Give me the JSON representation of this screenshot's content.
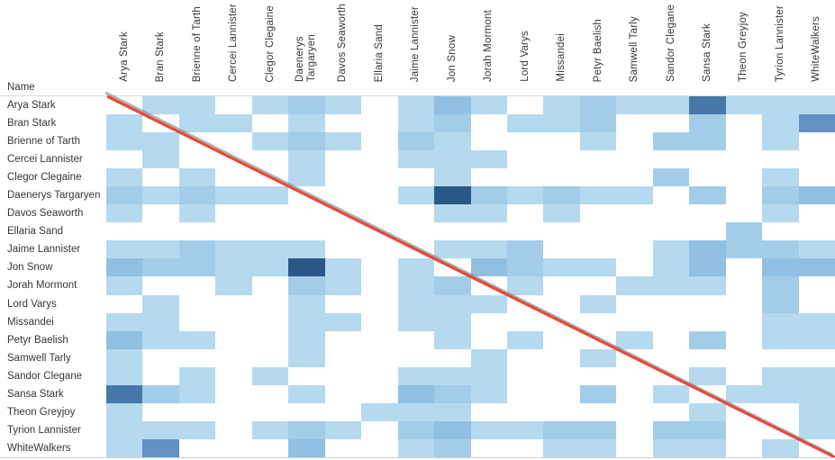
{
  "axis": {
    "name_label": "Name"
  },
  "chart_data": {
    "type": "heatmap",
    "title": "",
    "x_categories": [
      "Arya Stark",
      "Bran Stark",
      "Brienne of Tarth",
      "Cercei Lannister",
      "Clegor Clegaine",
      "Daenerys\nTargaryen",
      "Davos Seaworth",
      "Ellaria Sand",
      "Jaime Lannister",
      "Jon Snow",
      "Jorah Mormont",
      "Lord Varys",
      "Missandei",
      "Petyr Baelish",
      "Samwell Tarly",
      "Sandor Clegane",
      "Sansa Stark",
      "Theon Greyjoy",
      "Tyrion Lannister",
      "WhiteWalkers"
    ],
    "y_categories": [
      "Arya Stark",
      "Bran Stark",
      "Brienne of Tarth",
      "Cercei Lannister",
      "Clegor Clegaine",
      "Daenerys Targaryen",
      "Davos Seaworth",
      "Ellaria Sand",
      "Jaime Lannister",
      "Jon Snow",
      "Jorah Mormont",
      "Lord Varys",
      "Missandei",
      "Petyr Baelish",
      "Samwell Tarly",
      "Sandor Clegane",
      "Sansa Stark",
      "Theon Greyjoy",
      "Tyrion Lannister",
      "WhiteWalkers"
    ],
    "y_axis_title": "Name",
    "legend_position": "none",
    "grid": false,
    "intensity_scale_note": "0=no interaction(white), 6=strongest(darkest blue)",
    "palette": [
      "transparent",
      "#b5d9ef",
      "#a3cce8",
      "#90c0e2",
      "#6191c3",
      "#4678a8",
      "#2a5783"
    ],
    "matrix": [
      [
        0,
        1,
        1,
        0,
        1,
        2,
        1,
        0,
        1,
        3,
        1,
        0,
        1,
        2,
        1,
        1,
        5,
        1,
        1,
        1
      ],
      [
        1,
        0,
        1,
        1,
        0,
        1,
        0,
        0,
        1,
        2,
        0,
        1,
        1,
        2,
        0,
        0,
        2,
        0,
        1,
        4
      ],
      [
        1,
        1,
        0,
        0,
        1,
        2,
        1,
        0,
        2,
        1,
        0,
        0,
        0,
        1,
        0,
        2,
        2,
        0,
        1,
        0
      ],
      [
        0,
        1,
        0,
        0,
        0,
        1,
        0,
        0,
        1,
        1,
        1,
        0,
        0,
        0,
        0,
        0,
        0,
        0,
        0,
        0
      ],
      [
        1,
        0,
        1,
        0,
        0,
        1,
        0,
        0,
        0,
        1,
        0,
        0,
        0,
        0,
        0,
        2,
        0,
        0,
        1,
        0
      ],
      [
        2,
        1,
        2,
        1,
        1,
        0,
        0,
        0,
        1,
        6,
        2,
        1,
        2,
        1,
        1,
        0,
        2,
        0,
        2,
        3
      ],
      [
        1,
        0,
        1,
        0,
        0,
        0,
        0,
        0,
        0,
        1,
        1,
        0,
        1,
        0,
        0,
        0,
        0,
        0,
        1,
        0
      ],
      [
        0,
        0,
        0,
        0,
        0,
        0,
        0,
        0,
        0,
        0,
        0,
        0,
        0,
        0,
        0,
        0,
        0,
        2,
        0,
        0
      ],
      [
        1,
        1,
        2,
        1,
        1,
        1,
        0,
        0,
        0,
        1,
        1,
        2,
        0,
        0,
        0,
        1,
        3,
        2,
        2,
        1
      ],
      [
        3,
        2,
        2,
        1,
        1,
        6,
        1,
        0,
        1,
        0,
        3,
        2,
        1,
        1,
        0,
        1,
        3,
        0,
        3,
        3
      ],
      [
        1,
        0,
        0,
        1,
        0,
        2,
        1,
        0,
        1,
        2,
        0,
        1,
        0,
        0,
        1,
        1,
        1,
        0,
        2,
        0
      ],
      [
        0,
        1,
        0,
        0,
        0,
        1,
        0,
        0,
        1,
        1,
        1,
        0,
        0,
        1,
        0,
        0,
        0,
        0,
        2,
        0
      ],
      [
        1,
        1,
        0,
        0,
        0,
        1,
        1,
        0,
        1,
        1,
        0,
        0,
        0,
        0,
        0,
        0,
        0,
        0,
        1,
        1
      ],
      [
        3,
        1,
        1,
        0,
        0,
        1,
        0,
        0,
        0,
        1,
        0,
        1,
        0,
        0,
        1,
        0,
        2,
        0,
        1,
        1
      ],
      [
        1,
        0,
        0,
        0,
        0,
        1,
        0,
        0,
        0,
        0,
        1,
        0,
        0,
        1,
        0,
        0,
        0,
        0,
        0,
        0
      ],
      [
        1,
        0,
        1,
        0,
        1,
        0,
        0,
        0,
        1,
        1,
        1,
        0,
        0,
        0,
        0,
        0,
        1,
        0,
        1,
        1
      ],
      [
        5,
        2,
        1,
        0,
        0,
        1,
        0,
        0,
        3,
        2,
        1,
        0,
        0,
        2,
        0,
        1,
        0,
        1,
        1,
        1
      ],
      [
        1,
        0,
        0,
        0,
        0,
        0,
        0,
        1,
        1,
        1,
        0,
        0,
        0,
        0,
        0,
        0,
        1,
        0,
        0,
        1
      ],
      [
        1,
        1,
        1,
        0,
        1,
        2,
        1,
        0,
        2,
        3,
        1,
        1,
        2,
        2,
        0,
        2,
        2,
        0,
        0,
        1
      ],
      [
        1,
        4,
        0,
        0,
        0,
        3,
        0,
        0,
        1,
        2,
        0,
        0,
        1,
        1,
        0,
        1,
        1,
        0,
        1,
        0
      ]
    ],
    "diagonal_line": {
      "color": "#e8473c",
      "shadow_color": "#8a8a8a",
      "from": "top-left",
      "to": "bottom-right"
    }
  }
}
